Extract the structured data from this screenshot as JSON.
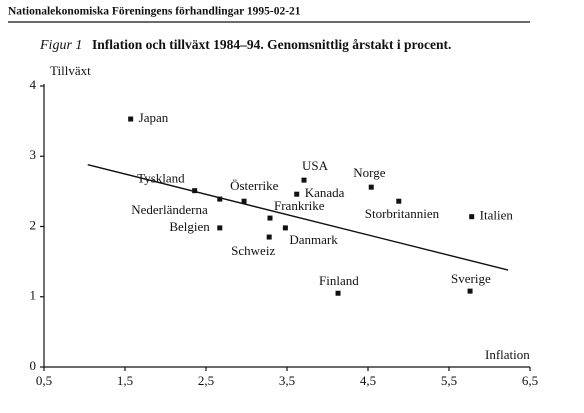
{
  "header": "Nationalekonomiska Föreningens förhandlingar 1995-02-21",
  "chart_data": {
    "type": "scatter",
    "figure_label": "Figur 1",
    "title": "Inflation och tillväxt 1984–94. Genomsnittlig årstakt i procent.",
    "y_label": "Tillväxt",
    "x_label": "Inflation",
    "categories": [
      "Japan",
      "Tyskland",
      "Nederländerna",
      "Belgien",
      "Österrike",
      "Frankrike",
      "Schweiz",
      "Danmark",
      "USA",
      "Kanada",
      "Norge",
      "Storbritannien",
      "Italien",
      "Finland",
      "Sverige"
    ],
    "x": [
      1.57,
      2.36,
      2.67,
      2.67,
      2.97,
      3.29,
      3.28,
      3.48,
      3.71,
      3.62,
      4.54,
      4.88,
      5.78,
      4.13,
      5.76
    ],
    "values": [
      3.53,
      2.51,
      2.39,
      1.98,
      2.36,
      2.12,
      1.85,
      1.98,
      2.66,
      2.46,
      2.56,
      2.36,
      2.14,
      1.05,
      1.08
    ],
    "color": "#111111",
    "trend_line": {
      "x": [
        1.04,
        6.23
      ],
      "values": [
        2.88,
        1.38
      ]
    },
    "xlim": [
      0.5,
      6.5
    ],
    "xticks": [
      {
        "value": 0.5,
        "label": "0,5"
      },
      {
        "value": 1.5,
        "label": "1,5"
      },
      {
        "value": 2.5,
        "label": "2,5"
      },
      {
        "value": 3.5,
        "label": "3,5"
      },
      {
        "value": 4.5,
        "label": "4,5"
      },
      {
        "value": 5.5,
        "label": "5,5"
      },
      {
        "value": 6.5,
        "label": "6,5"
      }
    ],
    "ylim": [
      0,
      4
    ],
    "yticks": [
      0,
      1,
      2,
      3,
      4
    ],
    "grid": false
  }
}
